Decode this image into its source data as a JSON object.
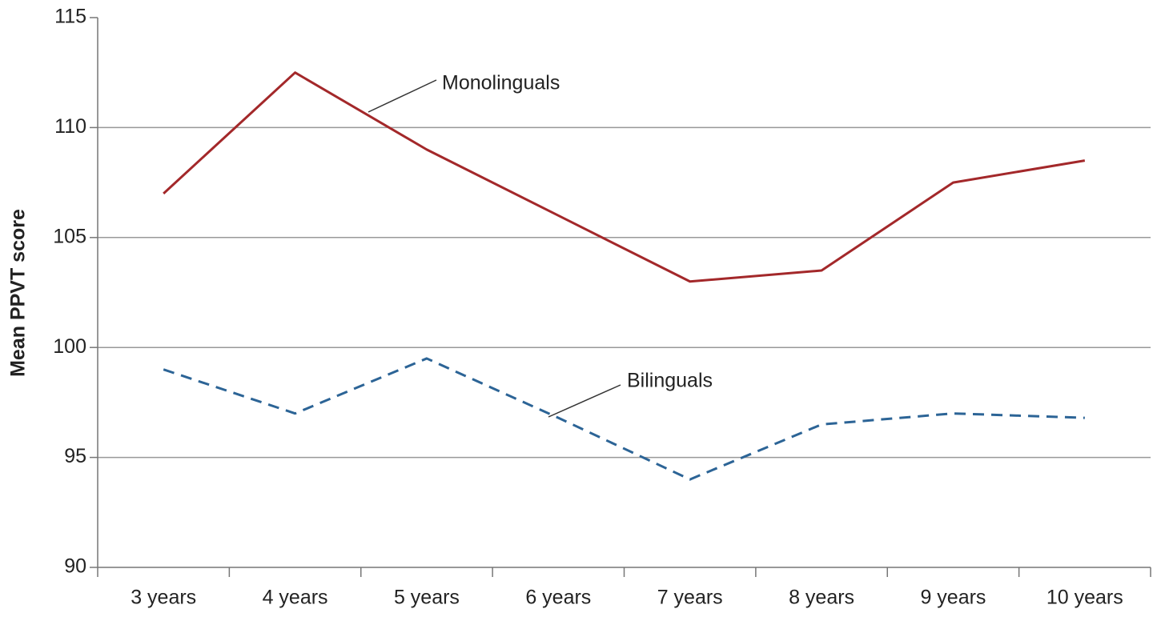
{
  "chart_data": {
    "type": "line",
    "y_label": "Mean PPVT score",
    "categories": [
      "3 years",
      "4 years",
      "5 years",
      "6 years",
      "7 years",
      "8 years",
      "9 years",
      "10 years"
    ],
    "series": [
      {
        "name": "Monolinguals",
        "color": "#a3282a",
        "dashed": false,
        "values": [
          107,
          112.5,
          109,
          106,
          103,
          103.5,
          107.5,
          108.5
        ]
      },
      {
        "name": "Bilinguals",
        "color": "#2c6496",
        "dashed": true,
        "values": [
          99,
          97,
          99.5,
          96.8,
          94,
          96.5,
          97,
          96.8
        ]
      }
    ],
    "ylim": [
      90,
      115
    ],
    "yticks": [
      90,
      95,
      100,
      105,
      110,
      115
    ],
    "grid": true
  }
}
